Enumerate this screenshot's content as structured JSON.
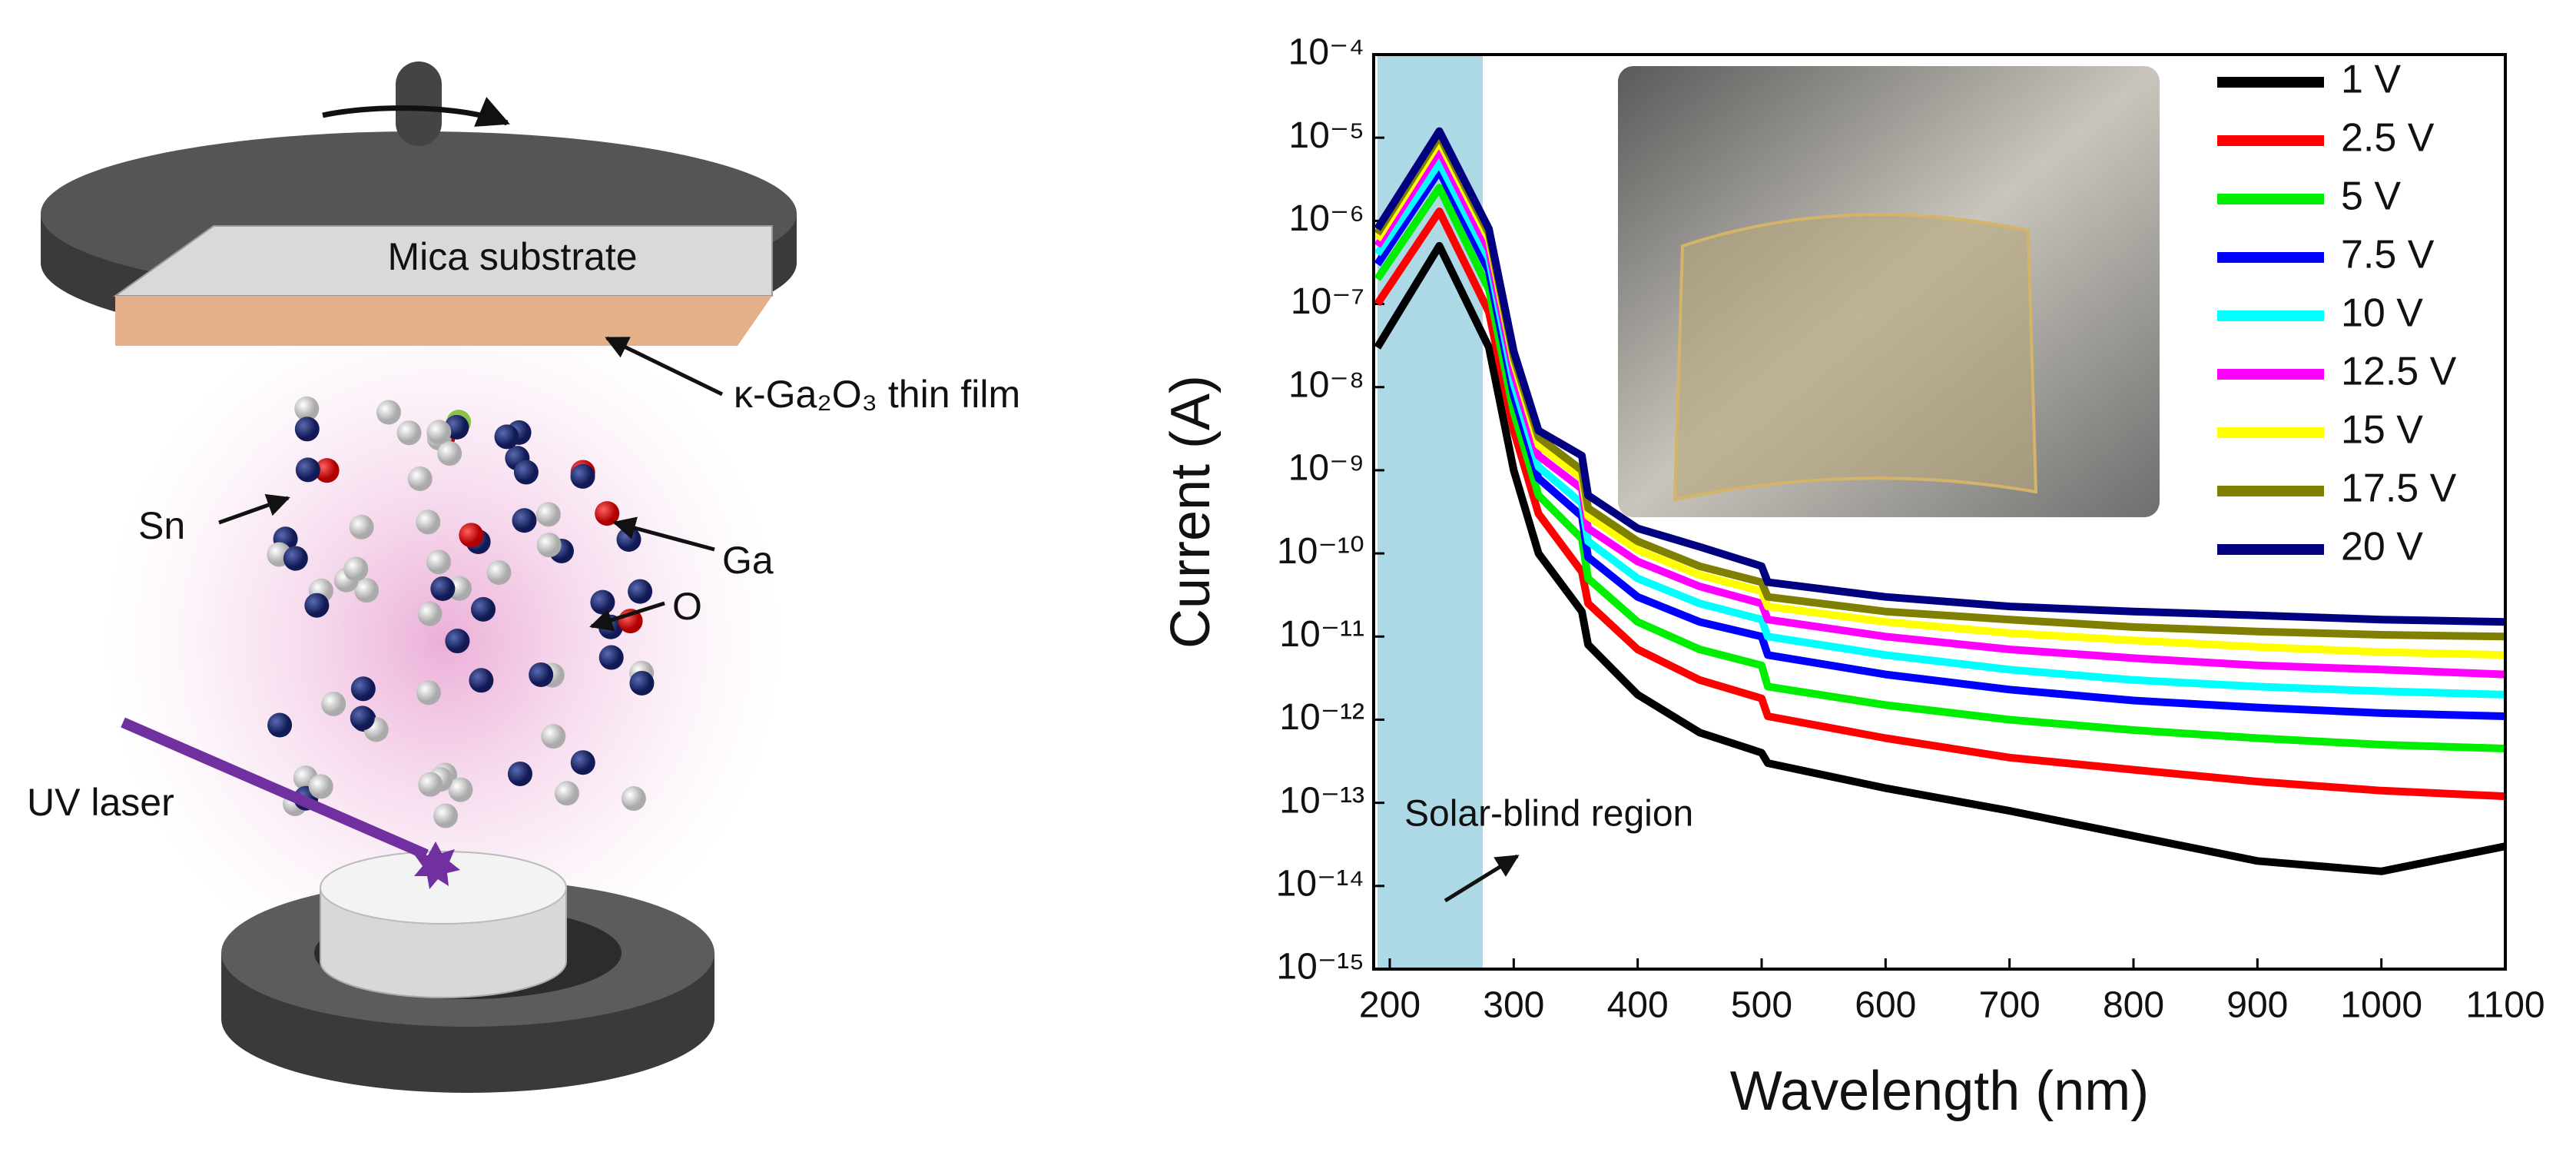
{
  "diagram": {
    "substrate_label": "Mica substrate",
    "film_label": "κ-Ga₂O₃ thin film",
    "atom_labels": [
      "Sn",
      "Ga",
      "O"
    ],
    "laser_label": "UV laser"
  },
  "chart_data": {
    "type": "line",
    "x_label": "Wavelength (nm)",
    "y_label": "Current (A)",
    "log_y": true,
    "x": [
      190,
      240,
      280,
      300,
      320,
      355,
      360,
      400,
      450,
      500,
      505,
      600,
      700,
      800,
      900,
      1000,
      1100
    ],
    "series": [
      {
        "name": "1 V",
        "color": "#000000",
        "values": [
          3e-08,
          5e-07,
          3e-08,
          1e-09,
          1e-10,
          2e-11,
          8e-12,
          2e-12,
          7e-13,
          4e-13,
          3e-13,
          1.5e-13,
          8e-14,
          4e-14,
          2e-14,
          1.5e-14,
          3e-14
        ]
      },
      {
        "name": "2.5 V",
        "color": "#ff0000",
        "values": [
          1e-07,
          1.3e-06,
          8e-08,
          3e-09,
          3e-10,
          6e-11,
          2.5e-11,
          7e-12,
          3e-12,
          1.8e-12,
          1.1e-12,
          6e-13,
          3.5e-13,
          2.5e-13,
          1.8e-13,
          1.4e-13,
          1.2e-13
        ]
      },
      {
        "name": "5 V",
        "color": "#00ee00",
        "values": [
          2e-07,
          2.5e-06,
          1.5e-07,
          5e-09,
          5e-10,
          1.5e-10,
          5e-11,
          1.5e-11,
          7e-12,
          4.5e-12,
          2.5e-12,
          1.5e-12,
          1e-12,
          7.5e-13,
          6e-13,
          5e-13,
          4.5e-13
        ]
      },
      {
        "name": "7.5 V",
        "color": "#0000ff",
        "values": [
          3e-07,
          4e-06,
          2.5e-07,
          8e-09,
          8e-10,
          2.8e-10,
          9e-11,
          3e-11,
          1.5e-11,
          1e-11,
          6e-12,
          3.5e-12,
          2.3e-12,
          1.7e-12,
          1.4e-12,
          1.2e-12,
          1.1e-12
        ]
      },
      {
        "name": "10 V",
        "color": "#00ffff",
        "values": [
          4e-07,
          5e-06,
          3.5e-07,
          1.1e-08,
          1.1e-09,
          4e-10,
          1.4e-10,
          5e-11,
          2.5e-11,
          1.6e-11,
          1e-11,
          6e-12,
          4e-12,
          3e-12,
          2.5e-12,
          2.2e-12,
          2e-12
        ]
      },
      {
        "name": "12.5 V",
        "color": "#ff00ff",
        "values": [
          5e-07,
          7e-06,
          4.5e-07,
          1.5e-08,
          1.5e-09,
          6e-10,
          2e-10,
          8e-11,
          4e-11,
          2.5e-11,
          1.6e-11,
          1e-11,
          7e-12,
          5.5e-12,
          4.5e-12,
          4e-12,
          3.5e-12
        ]
      },
      {
        "name": "15 V",
        "color": "#ffff00",
        "values": [
          6e-07,
          9e-06,
          6e-07,
          2e-08,
          2e-09,
          8e-10,
          2.8e-10,
          1.1e-10,
          5.5e-11,
          3.5e-11,
          2.3e-11,
          1.5e-11,
          1.1e-11,
          9e-12,
          7.5e-12,
          6.5e-12,
          6e-12
        ]
      },
      {
        "name": "17.5 V",
        "color": "#808000",
        "values": [
          7e-07,
          1.05e-05,
          7e-07,
          2.3e-08,
          2.5e-09,
          1e-09,
          3.5e-10,
          1.4e-10,
          7e-11,
          4.5e-11,
          3e-11,
          2e-11,
          1.6e-11,
          1.3e-11,
          1.15e-11,
          1.05e-11,
          1e-11
        ]
      },
      {
        "name": "20 V",
        "color": "#000080",
        "values": [
          8e-07,
          1.2e-05,
          8e-07,
          2.7e-08,
          3e-09,
          1.5e-09,
          5e-10,
          2e-10,
          1.2e-10,
          7e-11,
          4.5e-11,
          3e-11,
          2.3e-11,
          2e-11,
          1.8e-11,
          1.6e-11,
          1.5e-11
        ]
      }
    ],
    "xlim": [
      187,
      1100
    ],
    "xticks": [
      200,
      300,
      400,
      500,
      600,
      700,
      800,
      900,
      1000,
      1100
    ],
    "ylim": [
      1e-15,
      0.0001
    ],
    "yticks": [
      {
        "value": 1e-15,
        "label": "10⁻¹⁵"
      },
      {
        "value": 1e-14,
        "label": "10⁻¹⁴"
      },
      {
        "value": 1e-13,
        "label": "10⁻¹³"
      },
      {
        "value": 1e-12,
        "label": "10⁻¹²"
      },
      {
        "value": 1e-11,
        "label": "10⁻¹¹"
      },
      {
        "value": 1e-10,
        "label": "10⁻¹⁰"
      },
      {
        "value": 1e-09,
        "label": "10⁻⁹"
      },
      {
        "value": 1e-08,
        "label": "10⁻⁸"
      },
      {
        "value": 1e-07,
        "label": "10⁻⁷"
      },
      {
        "value": 1e-06,
        "label": "10⁻⁶"
      },
      {
        "value": 1e-05,
        "label": "10⁻⁵"
      },
      {
        "value": 0.0001,
        "label": "10⁻⁴"
      }
    ],
    "highlight": {
      "xrange": [
        190,
        275
      ],
      "color": "#add8e6",
      "label": "Solar-blind region"
    },
    "legend": "upper-right"
  }
}
